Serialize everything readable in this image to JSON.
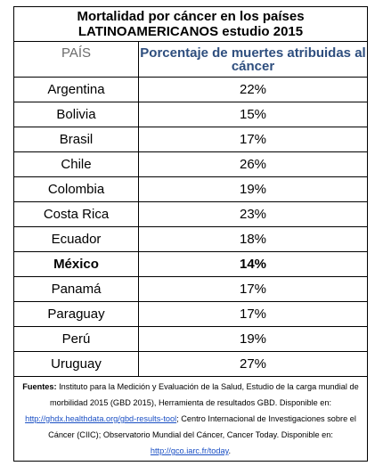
{
  "title": {
    "line1": "Mortalidad por cáncer en los países",
    "line2": "LATINOAMERICANOS estudio 2015"
  },
  "headers": {
    "country": "PAÍS",
    "percentage": "Porcentaje de muertes atribuidas al cáncer"
  },
  "rows": [
    {
      "country": "Argentina",
      "value": "22%",
      "bold": false
    },
    {
      "country": "Bolivia",
      "value": "15%",
      "bold": false
    },
    {
      "country": "Brasil",
      "value": "17%",
      "bold": false
    },
    {
      "country": "Chile",
      "value": "26%",
      "bold": false
    },
    {
      "country": "Colombia",
      "value": "19%",
      "bold": false
    },
    {
      "country": "Costa Rica",
      "value": "23%",
      "bold": false
    },
    {
      "country": "Ecuador",
      "value": "18%",
      "bold": false
    },
    {
      "country": "México",
      "value": "14%",
      "bold": true
    },
    {
      "country": "Panamá",
      "value": "17%",
      "bold": false
    },
    {
      "country": "Paraguay",
      "value": "17%",
      "bold": false
    },
    {
      "country": "Perú",
      "value": "19%",
      "bold": false
    },
    {
      "country": "Uruguay",
      "value": "27%",
      "bold": false
    }
  ],
  "source": {
    "label": "Fuentes:",
    "text1": " Instituto para la Medición y Evaluación de la Salud, Estudio de la carga mundial de morbilidad 2015 (GBD 2015), Herramienta de resultados GBD. Disponible en: ",
    "link1": "http://ghdx.healthdata.org/gbd-results-tool",
    "text2": "; Centro Internacional de Investigaciones sobre el Cáncer (CIIC); Observatorio Mundial del Cáncer, Cancer Today. Disponible en: ",
    "link2": "http://gco.iarc.fr/today",
    "text3": "."
  },
  "colors": {
    "header_pct": "#2e4e7e",
    "header_country": "#6b6b6b",
    "link": "#1a4fc4",
    "border": "#000000"
  }
}
